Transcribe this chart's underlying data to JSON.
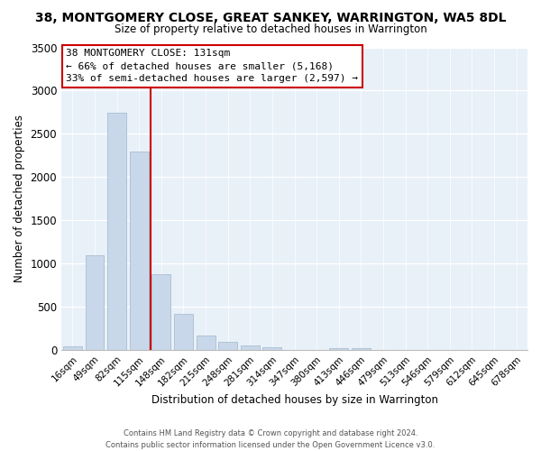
{
  "title": "38, MONTGOMERY CLOSE, GREAT SANKEY, WARRINGTON, WA5 8DL",
  "subtitle": "Size of property relative to detached houses in Warrington",
  "xlabel": "Distribution of detached houses by size in Warrington",
  "ylabel": "Number of detached properties",
  "bar_labels": [
    "16sqm",
    "49sqm",
    "82sqm",
    "115sqm",
    "148sqm",
    "182sqm",
    "215sqm",
    "248sqm",
    "281sqm",
    "314sqm",
    "347sqm",
    "380sqm",
    "413sqm",
    "446sqm",
    "479sqm",
    "513sqm",
    "546sqm",
    "579sqm",
    "612sqm",
    "645sqm",
    "678sqm"
  ],
  "bar_values": [
    40,
    1100,
    2740,
    2300,
    880,
    420,
    175,
    95,
    60,
    30,
    0,
    0,
    25,
    20,
    0,
    0,
    0,
    0,
    0,
    0,
    0
  ],
  "bar_color": "#c8d8ea",
  "bar_edge_color": "#aabdd0",
  "vline_color": "#cc0000",
  "annotation_title": "38 MONTGOMERY CLOSE: 131sqm",
  "annotation_line1": "← 66% of detached houses are smaller (5,168)",
  "annotation_line2": "33% of semi-detached houses are larger (2,597) →",
  "annotation_box_facecolor": "#ffffff",
  "annotation_box_edgecolor": "#cc0000",
  "ylim": [
    0,
    3500
  ],
  "yticks": [
    0,
    500,
    1000,
    1500,
    2000,
    2500,
    3000,
    3500
  ],
  "footer_line1": "Contains HM Land Registry data © Crown copyright and database right 2024.",
  "footer_line2": "Contains public sector information licensed under the Open Government Licence v3.0.",
  "fig_background": "#ffffff",
  "plot_background": "#e8f0f8",
  "grid_color": "#ffffff",
  "spine_color": "#bbbbbb"
}
